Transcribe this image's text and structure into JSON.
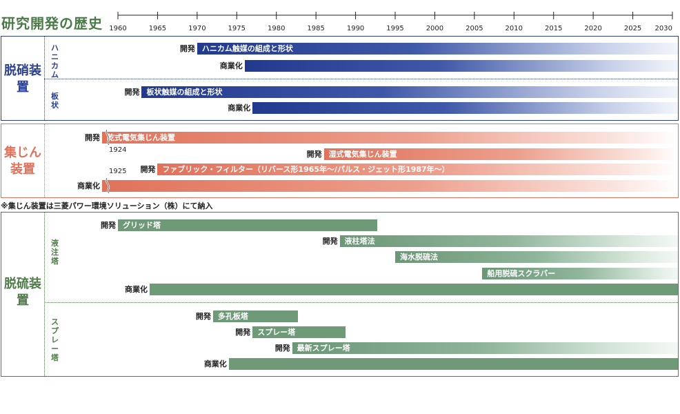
{
  "title": "研究開発の歴史",
  "axis": {
    "ticks": [
      "1960",
      "1965",
      "1970",
      "1975",
      "1980",
      "1985",
      "1990",
      "1995",
      "2000",
      "2005",
      "2010",
      "2015",
      "2020",
      "2025",
      "2030"
    ],
    "start": 1960,
    "end": 2030
  },
  "colors": {
    "denitration": "#2a3f8f",
    "dust": "#e0725a",
    "desulfurization": "#4f7a4a"
  },
  "denitration": {
    "label": "脱硝装置",
    "honeycomb_label": "ハニカム",
    "plate_label": "板状",
    "rows": [
      {
        "prefix": "開発",
        "text": "ハニカム触媒の組成と形状",
        "start": 1970,
        "end": 2030
      },
      {
        "prefix": "商業化",
        "text": "",
        "start": 1976,
        "end": 2030
      },
      {
        "prefix": "開発",
        "text": "板状触媒の組成と形状",
        "start": 1963,
        "end": 2030
      },
      {
        "prefix": "商業化",
        "text": "",
        "start": 1977,
        "end": 2030
      }
    ]
  },
  "dust": {
    "label": "集じん装置",
    "year1": "1924",
    "year2": "1925",
    "rows": [
      {
        "prefix": "開発",
        "text": "乾式電気集じん装置",
        "start": 1958,
        "end": 2030
      },
      {
        "prefix": "開発",
        "text": "湿式電気集じん装置",
        "start": 1986,
        "end": 2030
      },
      {
        "prefix": "開発",
        "text": "ファブリック・フィルター（リバース形1965年～/パルス・ジェット形1987年～）",
        "start": 1965,
        "end": 2030
      },
      {
        "prefix": "商業化",
        "text": "",
        "start": 1958,
        "end": 2030
      }
    ]
  },
  "note": "※集じん装置は三菱パワー環境ソリューション（株）にて納入",
  "desulfurization": {
    "label": "脱硫装置",
    "liquid_label": "液注塔",
    "spray_label": "スプレー塔",
    "rows": [
      {
        "prefix": "開発",
        "text": "グリッド塔",
        "start": 1960,
        "end": 1992
      },
      {
        "prefix": "開発",
        "text": "液柱塔法",
        "start": 1988,
        "end": 2030
      },
      {
        "prefix": "",
        "text": "海水脱硫法",
        "start": 1995,
        "end": 2030
      },
      {
        "prefix": "",
        "text": "船用脱硫スクラバー",
        "start": 2006,
        "end": 2030
      },
      {
        "prefix": "商業化",
        "text": "",
        "start": 1964,
        "end": 2030
      },
      {
        "prefix": "開発",
        "text": "多孔板塔",
        "start": 1972,
        "end": 1982
      },
      {
        "prefix": "開発",
        "text": "スプレー塔",
        "start": 1977,
        "end": 1988
      },
      {
        "prefix": "開発",
        "text": "最新スプレー塔",
        "start": 1982,
        "end": 2030
      },
      {
        "prefix": "商業化",
        "text": "",
        "start": 1974,
        "end": 2030
      }
    ]
  }
}
